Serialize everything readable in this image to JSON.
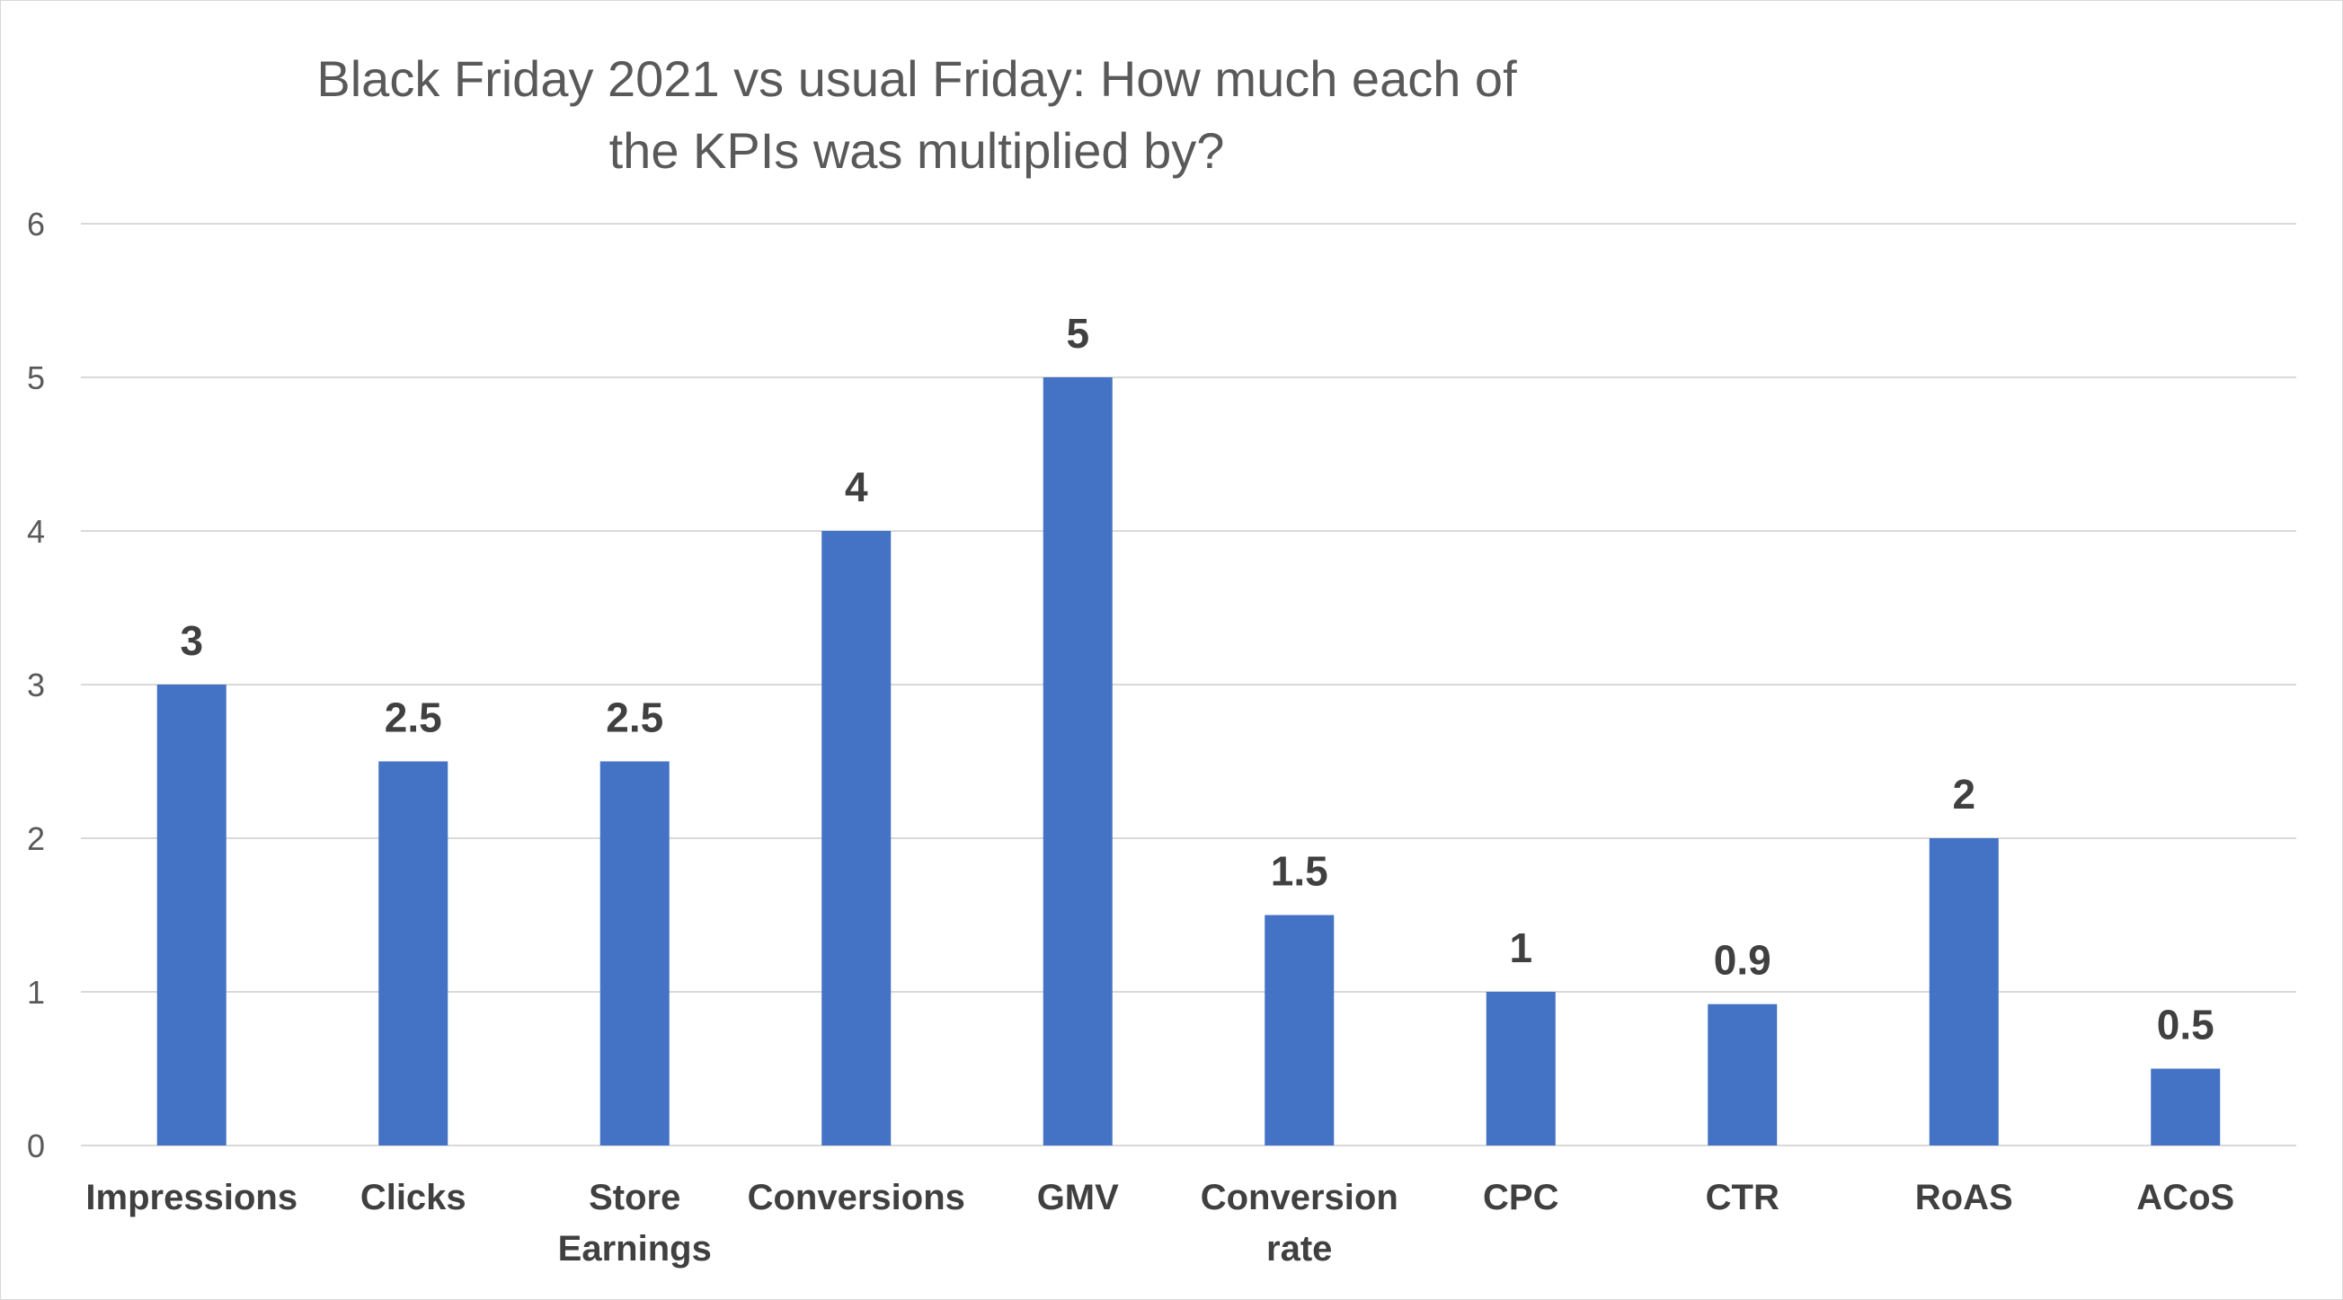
{
  "chart_data": {
    "type": "bar",
    "title": "Black Friday 2021 vs usual Friday: How much each of the KPIs was multiplied by?",
    "categories": [
      [
        "Impressions"
      ],
      [
        "Clicks"
      ],
      [
        "Store",
        "Earnings"
      ],
      [
        "Conversions"
      ],
      [
        "GMV"
      ],
      [
        "Conversion",
        "rate"
      ],
      [
        "CPC"
      ],
      [
        "CTR"
      ],
      [
        "RoAS"
      ],
      [
        "ACoS"
      ]
    ],
    "values": [
      3,
      2.5,
      2.5,
      4,
      5,
      1.5,
      1,
      0.92,
      2,
      0.5
    ],
    "data_labels": [
      "3",
      "2.5",
      "2.5",
      "4",
      "5",
      "1.5",
      "1",
      "0.9",
      "2",
      "0.5"
    ],
    "y_ticks": [
      "0",
      "1",
      "2",
      "3",
      "4",
      "5",
      "6"
    ],
    "ylim": [
      0,
      6
    ],
    "xlabel": "",
    "ylabel": "",
    "grid": true,
    "legend": "none",
    "colors": {
      "bar": "#4472c4",
      "grid": "#d9d9d9",
      "axis_text": "#595959",
      "label_text": "#404040"
    }
  }
}
